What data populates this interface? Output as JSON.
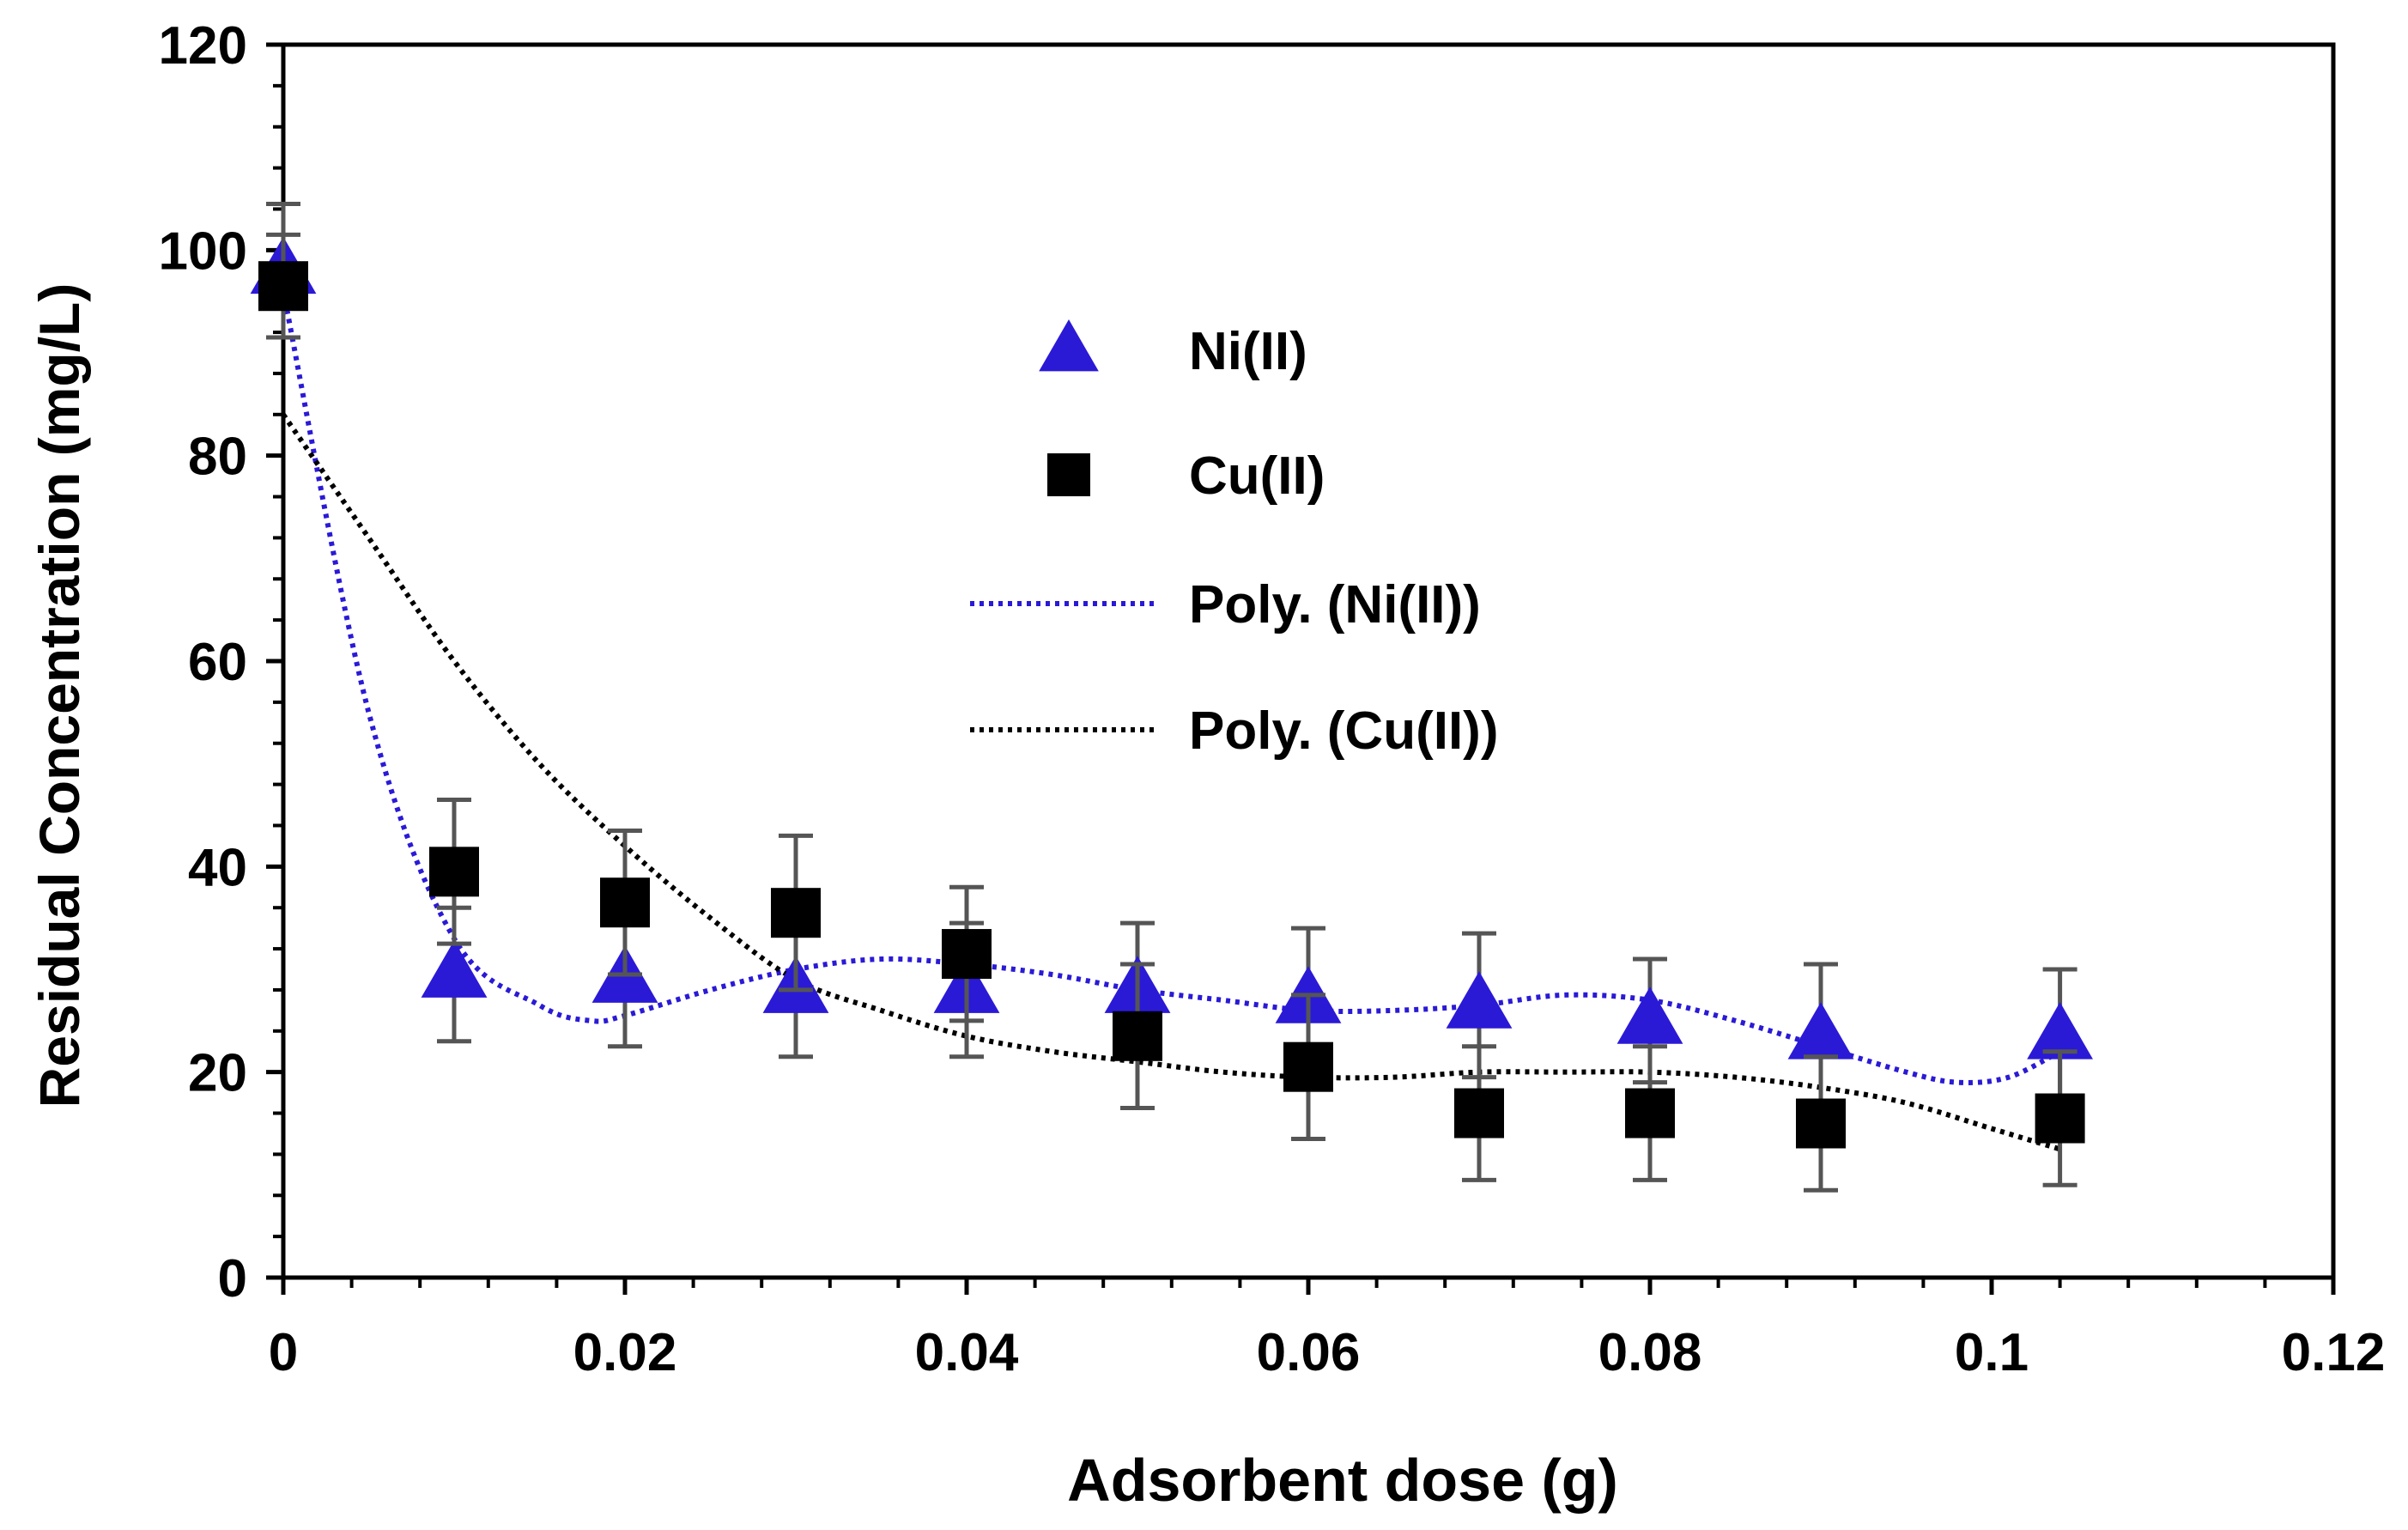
{
  "chart_data": {
    "type": "scatter",
    "title": "",
    "xlabel": "Adsorbent dose (g)",
    "ylabel": "Residual Concentration (mg/L)",
    "xlim": [
      0,
      0.12
    ],
    "ylim": [
      0,
      120
    ],
    "x_ticks": [
      0,
      0.02,
      0.04,
      0.06,
      0.08,
      0.1,
      0.12
    ],
    "x_tick_labels": [
      "0",
      "0.02",
      "0.04",
      "0.06",
      "0.08",
      "0.1",
      "0.12"
    ],
    "y_ticks": [
      0,
      20,
      40,
      60,
      80,
      100,
      120
    ],
    "y_tick_labels": [
      "0",
      "20",
      "40",
      "60",
      "80",
      "100",
      "120"
    ],
    "grid": false,
    "legend_position": "upper-center",
    "series": [
      {
        "name": "Ni(II)",
        "marker": "triangle",
        "color": "#2a1ad6",
        "x": [
          0,
          0.01,
          0.02,
          0.03,
          0.04,
          0.05,
          0.06,
          0.07,
          0.08,
          0.09,
          0.104
        ],
        "y": [
          98,
          29.5,
          29,
          28,
          28,
          28,
          27,
          26.5,
          25,
          23.5,
          23.5
        ],
        "error": [
          6.5,
          6.5,
          6.5,
          6.5,
          6.5,
          6.5,
          7,
          7,
          6,
          7,
          6.5
        ]
      },
      {
        "name": "Cu(II)",
        "marker": "square",
        "color": "#000000",
        "x": [
          0,
          0.01,
          0.02,
          0.03,
          0.04,
          0.05,
          0.06,
          0.07,
          0.08,
          0.09,
          0.104
        ],
        "y": [
          96.5,
          39.5,
          36.5,
          35.5,
          31.5,
          23.5,
          20.5,
          16,
          16,
          15,
          15.5
        ],
        "error": [
          5,
          7,
          7,
          7.5,
          6.5,
          7,
          7,
          6.5,
          6.5,
          6.5,
          6.5
        ]
      }
    ],
    "trendlines": [
      {
        "name": "Poly. (Ni(II))",
        "style": "dotted",
        "color": "#2a1ad6",
        "x": [
          0,
          0.005,
          0.01,
          0.015,
          0.018,
          0.02,
          0.025,
          0.03,
          0.035,
          0.04,
          0.045,
          0.05,
          0.055,
          0.06,
          0.065,
          0.07,
          0.075,
          0.08,
          0.085,
          0.09,
          0.095,
          0.098,
          0.101,
          0.104
        ],
        "y": [
          96,
          55,
          33,
          26.5,
          25,
          25.5,
          28,
          30,
          31,
          30.5,
          29.5,
          28,
          27,
          26,
          26,
          26.5,
          27.5,
          27,
          25,
          22.5,
          20,
          19,
          19.5,
          22
        ]
      },
      {
        "name": "Poly. (Cu(II))",
        "style": "dotted",
        "color": "#000000",
        "x": [
          0,
          0.005,
          0.01,
          0.015,
          0.02,
          0.025,
          0.03,
          0.035,
          0.04,
          0.045,
          0.05,
          0.055,
          0.06,
          0.065,
          0.07,
          0.075,
          0.08,
          0.085,
          0.09,
          0.095,
          0.1,
          0.104
        ],
        "y": [
          84,
          72,
          60,
          50,
          42,
          35,
          29,
          26,
          23.5,
          22,
          21,
          20,
          19.5,
          19.5,
          20,
          20,
          20,
          19.5,
          18.5,
          17,
          14.5,
          12.5
        ]
      }
    ]
  }
}
